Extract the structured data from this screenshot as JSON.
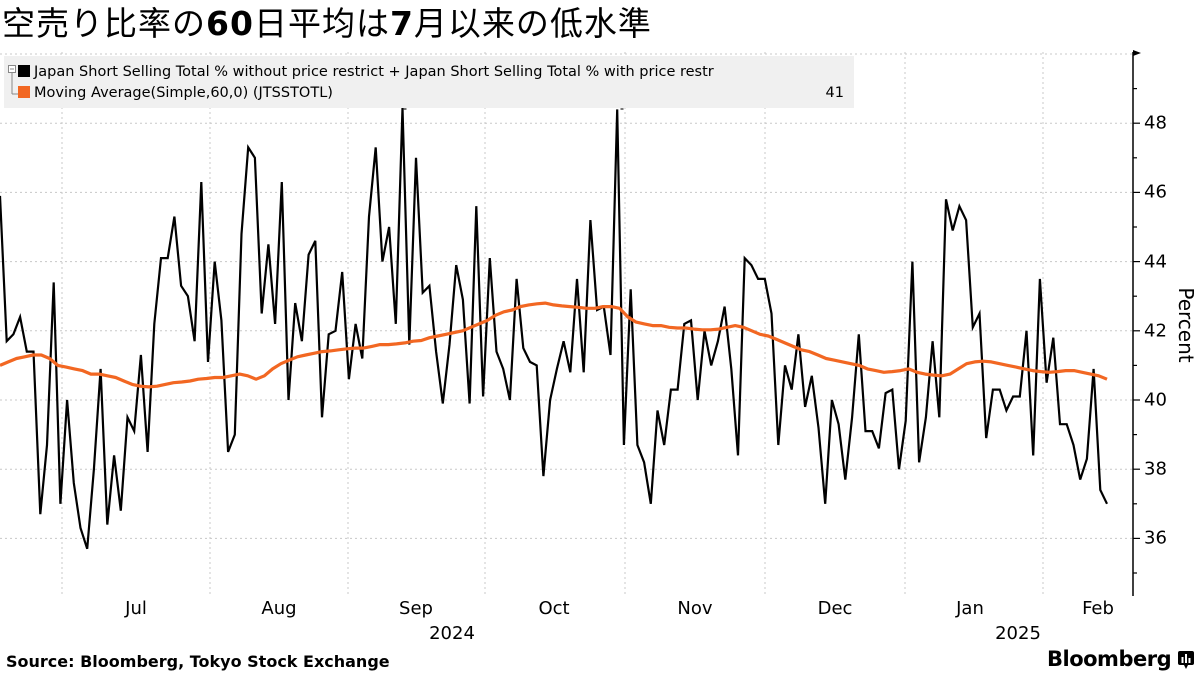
{
  "title": {
    "part1": "空売り比率の",
    "bold1": "60",
    "part2": "日平均は",
    "bold2": "7",
    "part3": "月以来の低水準"
  },
  "legend": {
    "series1_label": "Japan Short Selling Total % without price restrict + Japan Short Selling Total % with price restr",
    "series2_label": "Moving Average(Simple,60,0) (JTSSTOTL)",
    "series2_last_value": "41",
    "colors": {
      "series1": "#000000",
      "series2": "#f26722"
    }
  },
  "axes": {
    "y_label": "Percent",
    "y_ticks": [
      "48",
      "46",
      "44",
      "42",
      "40",
      "38",
      "36"
    ],
    "x_months": [
      "Jul",
      "Aug",
      "Sep",
      "Oct",
      "Nov",
      "Dec",
      "Jan",
      "Feb"
    ],
    "x_years": [
      "2024",
      "2025"
    ]
  },
  "footer": {
    "source": "Source: Bloomberg, Tokyo Stock Exchange",
    "brand": "Bloomberg"
  },
  "chart_data": {
    "type": "line",
    "title": "空売り比率の60日平均は7月以来の低水準",
    "xlabel": "",
    "ylabel": "Percent",
    "ylim": [
      34.5,
      50
    ],
    "grid": true,
    "legend_position": "top-left",
    "x_tick_labels": [
      "Jul",
      "Aug",
      "Sep",
      "Oct",
      "Nov",
      "Dec",
      "Jan",
      "Feb"
    ],
    "x_year_labels": [
      "2024",
      "2025"
    ],
    "x_range": [
      "2024-06-20",
      "2025-02-07"
    ],
    "series": [
      {
        "name": "Japan Short Selling Total % without price restrict + Japan Short Selling Total % with price restr",
        "color": "#000000",
        "values": [
          45.9,
          41.7,
          41.9,
          42.4,
          41.4,
          41.4,
          36.7,
          38.7,
          43.4,
          37.0,
          40.0,
          37.6,
          36.3,
          35.7,
          38.0,
          40.9,
          36.4,
          38.4,
          36.8,
          39.5,
          39.1,
          41.3,
          38.5,
          42.2,
          44.1,
          44.1,
          45.3,
          43.3,
          43.0,
          41.7,
          46.3,
          41.1,
          44.0,
          42.3,
          38.5,
          39.0,
          44.8,
          47.3,
          47.0,
          42.5,
          44.5,
          42.2,
          46.3,
          40.0,
          42.8,
          41.7,
          44.2,
          44.6,
          39.5,
          41.9,
          42.0,
          43.7,
          40.6,
          42.2,
          41.2,
          45.3,
          47.3,
          44.0,
          45.0,
          42.2,
          48.8,
          41.6,
          47.0,
          43.1,
          43.3,
          41.4,
          39.9,
          41.6,
          43.9,
          42.9,
          39.9,
          45.6,
          40.1,
          44.1,
          41.4,
          40.9,
          40.0,
          43.5,
          41.5,
          41.1,
          41.0,
          37.8,
          40.0,
          40.9,
          41.7,
          40.8,
          43.5,
          40.8,
          45.2,
          42.6,
          42.7,
          41.3,
          48.4,
          38.7,
          43.2,
          38.7,
          38.2,
          37.0,
          39.7,
          38.7,
          40.3,
          40.3,
          42.2,
          42.3,
          40.0,
          42.0,
          41.0,
          41.7,
          42.7,
          40.9,
          38.4,
          44.1,
          43.9,
          43.5,
          43.5,
          42.5,
          38.7,
          41.0,
          40.3,
          41.9,
          39.8,
          40.7,
          39.2,
          37.0,
          40.0,
          39.3,
          37.7,
          39.5,
          41.9,
          39.1,
          39.1,
          38.6,
          40.2,
          40.3,
          38.0,
          39.4,
          44.0,
          38.2,
          39.5,
          41.7,
          39.5,
          45.8,
          44.9,
          45.6,
          45.2,
          42.1,
          42.5,
          38.9,
          40.3,
          40.3,
          39.7,
          40.1,
          40.1,
          42.0,
          38.4,
          43.5,
          40.5,
          41.8,
          39.3,
          39.3,
          38.7,
          37.7,
          38.3,
          40.9,
          37.4,
          37.0
        ]
      },
      {
        "name": "Moving Average(Simple,60,0) (JTSSTOTL)",
        "color": "#f26722",
        "values": [
          41.0,
          41.1,
          41.2,
          41.25,
          41.3,
          41.3,
          41.2,
          41.0,
          40.95,
          40.9,
          40.85,
          40.75,
          40.75,
          40.7,
          40.65,
          40.55,
          40.45,
          40.4,
          40.38,
          40.4,
          40.45,
          40.5,
          40.52,
          40.55,
          40.6,
          40.62,
          40.65,
          40.65,
          40.7,
          40.75,
          40.7,
          40.6,
          40.7,
          40.9,
          41.05,
          41.15,
          41.25,
          41.3,
          41.35,
          41.4,
          41.42,
          41.45,
          41.48,
          41.5,
          41.5,
          41.55,
          41.6,
          41.6,
          41.62,
          41.65,
          41.7,
          41.72,
          41.8,
          41.85,
          41.9,
          41.95,
          42.0,
          42.1,
          42.2,
          42.3,
          42.45,
          42.55,
          42.6,
          42.7,
          42.75,
          42.78,
          42.8,
          42.75,
          42.72,
          42.7,
          42.68,
          42.65,
          42.65,
          42.7,
          42.7,
          42.65,
          42.4,
          42.25,
          42.2,
          42.15,
          42.15,
          42.1,
          42.08,
          42.08,
          42.05,
          42.03,
          42.03,
          42.05,
          42.1,
          42.15,
          42.1,
          42.0,
          41.9,
          41.85,
          41.75,
          41.65,
          41.55,
          41.45,
          41.4,
          41.3,
          41.2,
          41.15,
          41.1,
          41.05,
          41.0,
          40.9,
          40.85,
          40.8,
          40.82,
          40.85,
          40.9,
          40.8,
          40.75,
          40.72,
          40.7,
          40.75,
          40.9,
          41.05,
          41.1,
          41.12,
          41.1,
          41.05,
          41.0,
          40.95,
          40.9,
          40.85,
          40.82,
          40.8,
          40.82,
          40.85,
          40.85,
          40.8,
          40.75,
          40.7,
          40.6
        ]
      }
    ],
    "series1_peak_values": [
      48.8,
      48.4
    ]
  }
}
